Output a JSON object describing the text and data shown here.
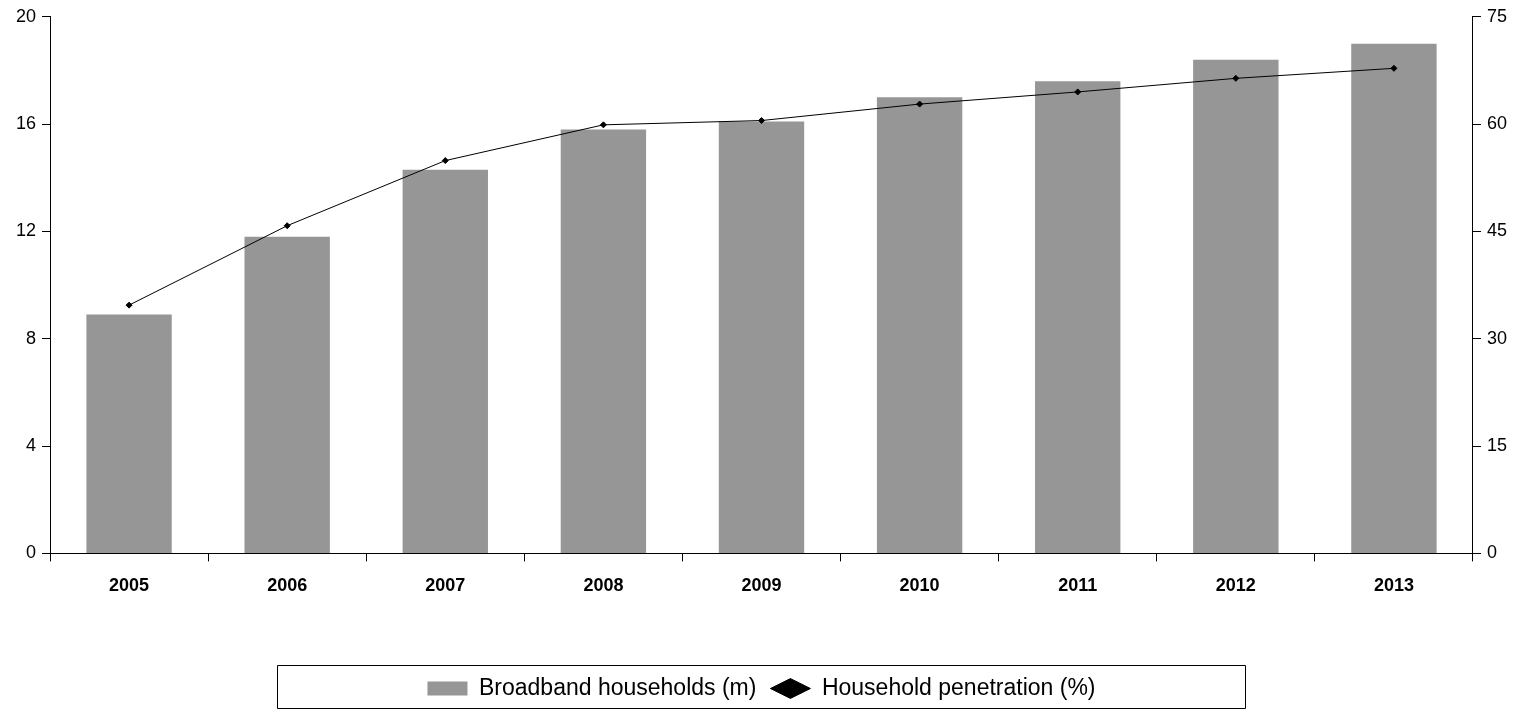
{
  "chart_data": {
    "type": "bar",
    "categories": [
      "2005",
      "2006",
      "2007",
      "2008",
      "2009",
      "2010",
      "2011",
      "2012",
      "2013"
    ],
    "series": [
      {
        "name": "Broadband households (m)",
        "color": "#969696",
        "values": [
          8.9,
          11.8,
          14.3,
          15.8,
          16.1,
          17.0,
          17.6,
          18.4,
          19.0
        ]
      },
      {
        "name": "Household penetration (%)",
        "type": "line",
        "axis": "y2",
        "color": "#000000",
        "marker": "diamond",
        "line_style": "solid",
        "values": [
          34.7,
          45.8,
          54.9,
          59.9,
          60.5,
          62.8,
          64.5,
          66.4,
          67.8
        ]
      }
    ],
    "ylim": [
      0,
      20
    ],
    "yticks": [
      0,
      4,
      8,
      12,
      16,
      20
    ],
    "y2lim": [
      0,
      75
    ],
    "y2ticks": [
      0,
      15,
      30,
      45,
      60,
      75
    ],
    "grid": false,
    "legend": "bottom"
  }
}
